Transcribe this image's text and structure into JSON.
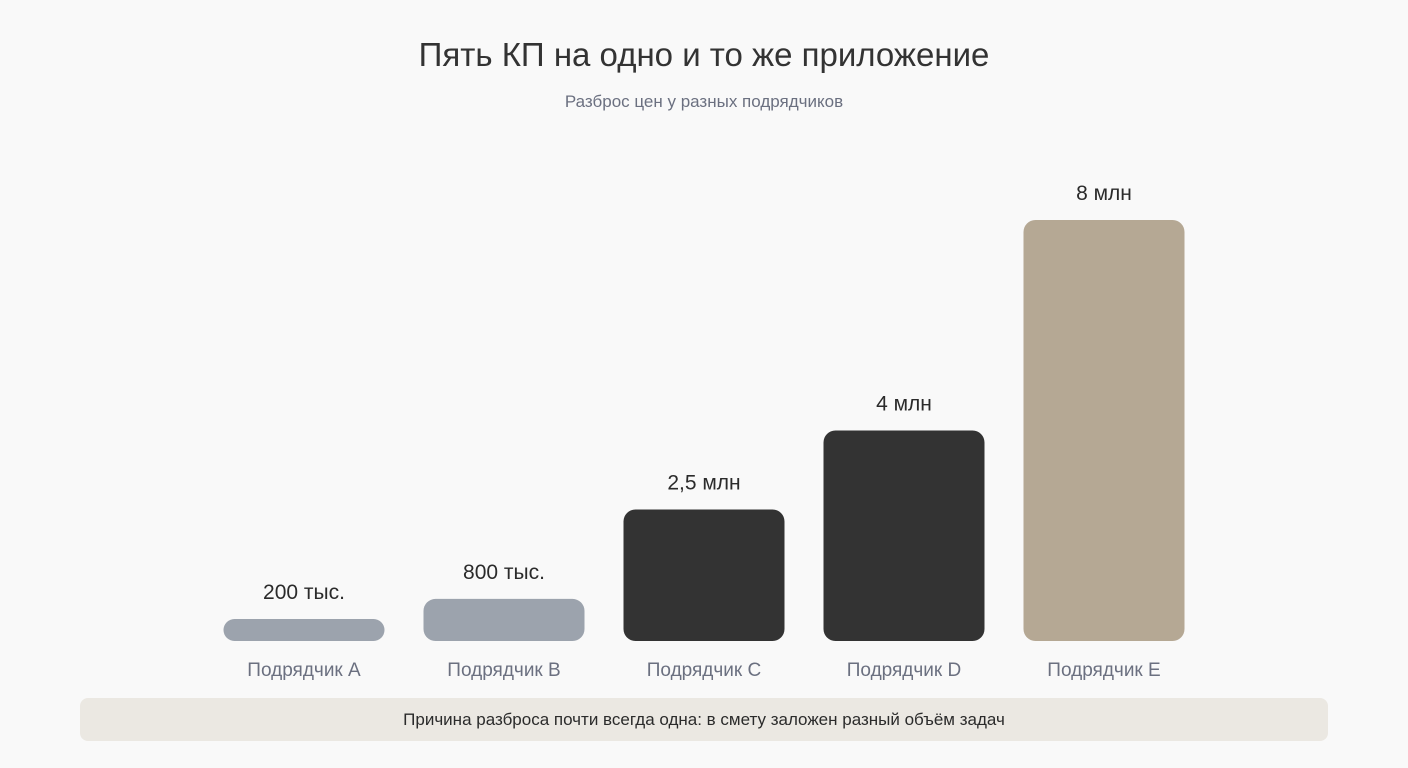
{
  "chart_data": {
    "type": "bar",
    "title": "Пять КП на одно и то же приложение",
    "subtitle": "Разброс цен у разных подрядчиков",
    "categories": [
      "Подрядчик A",
      "Подрядчик B",
      "Подрядчик C",
      "Подрядчик D",
      "Подрядчик E"
    ],
    "values": [
      200000,
      800000,
      2500000,
      4000000,
      8000000
    ],
    "value_labels": [
      "200 тыс.",
      "800 тыс.",
      "2,5 млн",
      "4 млн",
      "8 млн"
    ],
    "bar_colors": [
      "#9ca3ad",
      "#9ca3ad",
      "#333333",
      "#333333",
      "#b5a894"
    ],
    "xlabel": "",
    "ylabel": "",
    "ylim": [
      0,
      8000000
    ],
    "grid": false,
    "legend": "none"
  },
  "footer": {
    "note": "Причина разброса почти всегда одна: в смету заложен разный объём задач"
  },
  "colors": {
    "background": "#f9f9f9",
    "title": "#333333",
    "subtitle": "#6b7080",
    "category_label": "#6b7080",
    "value_label": "#2b2b2b",
    "note_background": "#ebe8e2"
  }
}
